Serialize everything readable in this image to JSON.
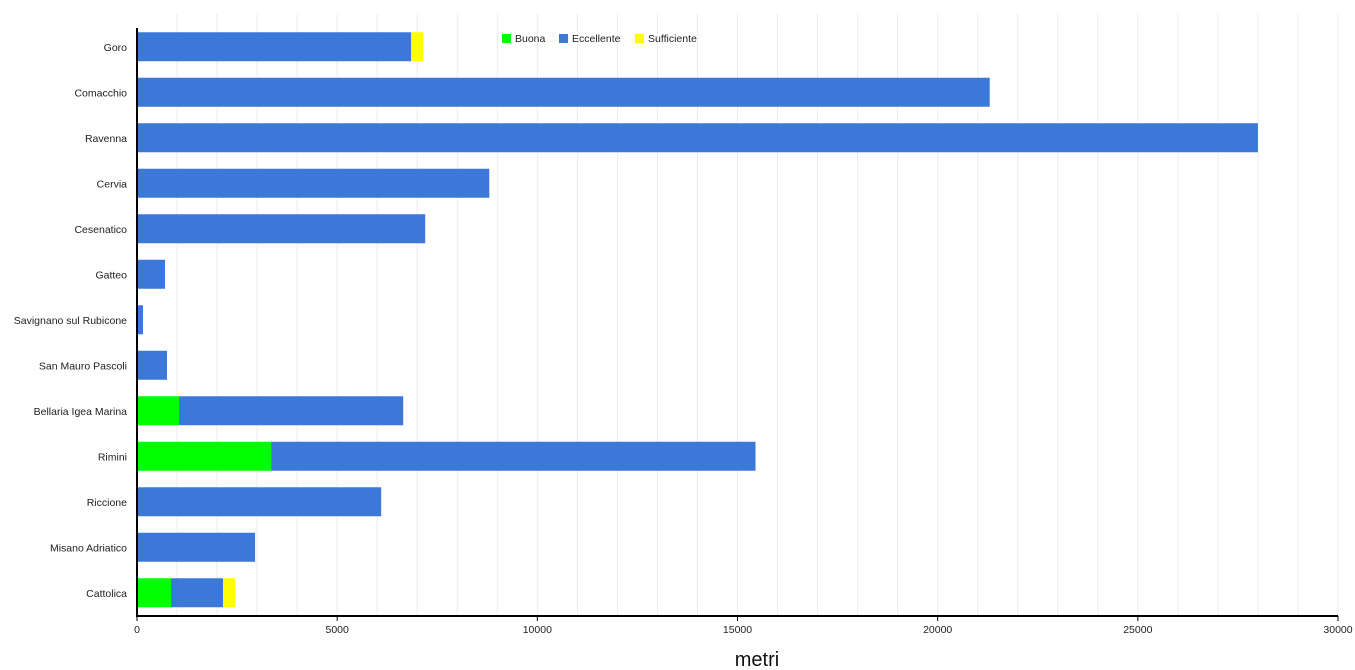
{
  "chart_data": {
    "type": "bar",
    "orientation": "horizontal",
    "stacked": true,
    "xlabel": "metri",
    "ylabel": "",
    "xlim": [
      0,
      30000
    ],
    "xticks": [
      0,
      5000,
      10000,
      15000,
      20000,
      25000,
      30000
    ],
    "xtick_labels": [
      "0",
      "5000",
      "10000",
      "15000",
      "20000",
      "25000",
      "30000"
    ],
    "grid": "vertical",
    "legend_position": "top",
    "categories": [
      "Goro",
      "Comacchio",
      "Ravenna",
      "Cervia",
      "Cesenatico",
      "Gatteo",
      "Savignano sul Rubicone",
      "San Mauro Pascoli",
      "Bellaria Igea Marina",
      "Rimini",
      "Riccione",
      "Misano Adriatico",
      "Cattolica"
    ],
    "series": [
      {
        "name": "Buona",
        "color": "#00ff00",
        "values": [
          0,
          0,
          0,
          0,
          0,
          0,
          0,
          0,
          1050,
          3350,
          0,
          0,
          850
        ]
      },
      {
        "name": "Eccellente",
        "color": "#3c78d8",
        "values": [
          6850,
          21300,
          28000,
          8800,
          7200,
          700,
          150,
          750,
          5600,
          12100,
          6100,
          2950,
          1300
        ]
      },
      {
        "name": "Sufficiente",
        "color": "#ffff00",
        "values": [
          300,
          0,
          0,
          0,
          0,
          0,
          0,
          0,
          0,
          0,
          0,
          0,
          300
        ]
      }
    ]
  }
}
